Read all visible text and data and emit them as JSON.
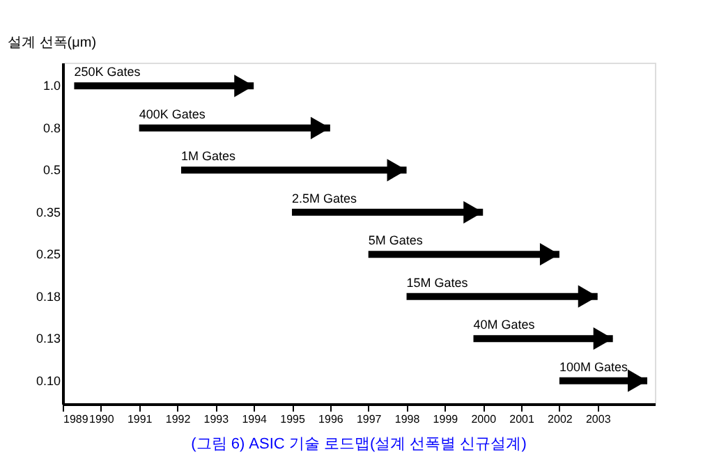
{
  "chart_data": {
    "type": "bar",
    "orientation": "horizontal",
    "title": "(그림 6) ASIC 기술 로드맵(설계 선폭별 신규설계)",
    "ylabel": "설계 선폭(μm)",
    "categories": [
      "1.0",
      "0.8",
      "0.5",
      "0.35",
      "0.25",
      "0.18",
      "0.13",
      "0.10"
    ],
    "base": [
      1989.3,
      1991.0,
      1992.1,
      1995.0,
      1997.0,
      1998.0,
      1999.75,
      2002.0
    ],
    "values": [
      4.7,
      5.0,
      5.9,
      5.0,
      5.0,
      5.0,
      3.65,
      2.3
    ],
    "color": "#000000",
    "xlim": [
      1989,
      2004.5
    ],
    "xticks": [
      1989,
      1990,
      1991,
      1992,
      1993,
      1994,
      1995,
      1996,
      1997,
      1998,
      1999,
      2000,
      2001,
      2002,
      2003
    ],
    "annotations": [
      {
        "text": "250K Gates",
        "x": 1989.3,
        "y": "1.0"
      },
      {
        "text": "400K Gates",
        "x": 1991.0,
        "y": "0.8"
      },
      {
        "text": "1M Gates",
        "x": 1992.1,
        "y": "0.5"
      },
      {
        "text": "2.5M Gates",
        "x": 1995.0,
        "y": "0.35"
      },
      {
        "text": "5M Gates",
        "x": 1997.0,
        "y": "0.25"
      },
      {
        "text": "15M Gates",
        "x": 1998.0,
        "y": "0.18"
      },
      {
        "text": "40M Gates",
        "x": 1999.75,
        "y": "0.13"
      },
      {
        "text": "100M Gates",
        "x": 2002.0,
        "y": "0.10"
      }
    ],
    "grid": false,
    "legend": false
  }
}
